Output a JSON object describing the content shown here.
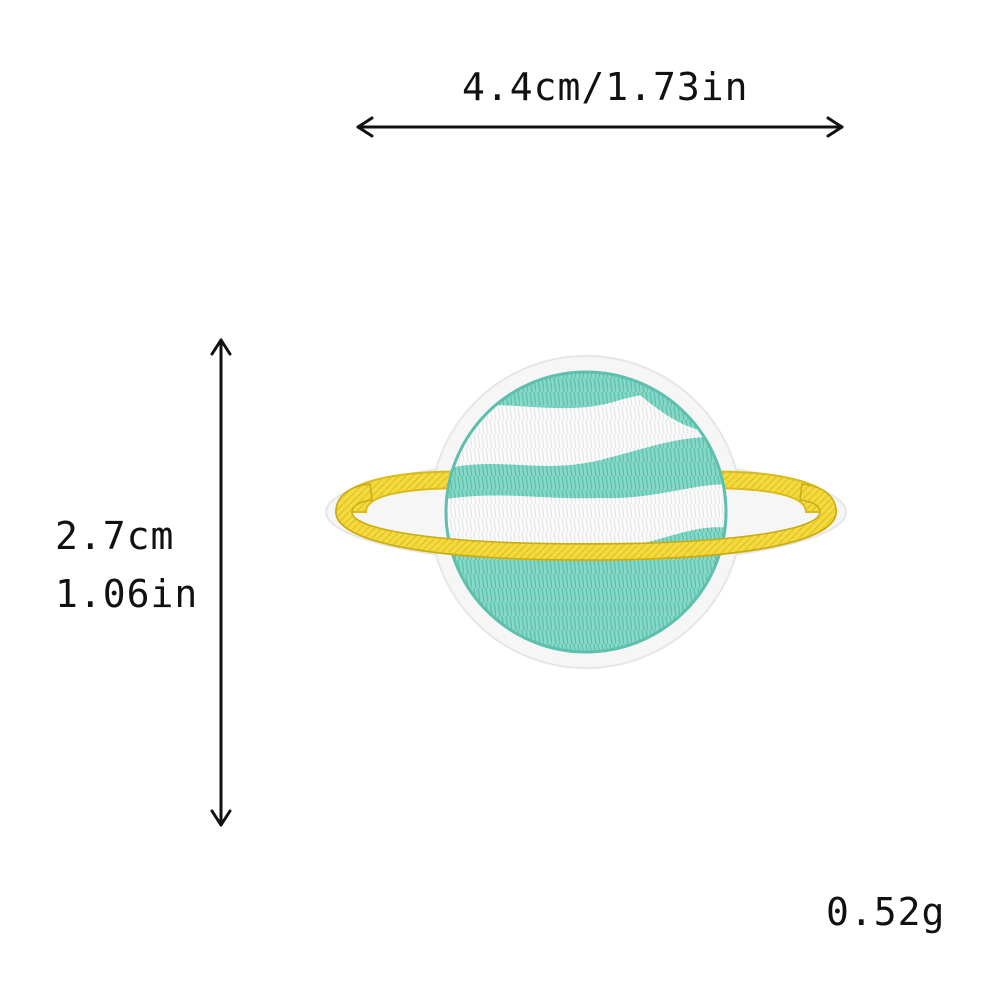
{
  "dimensions": {
    "width_text": "4.4cm/1.73in",
    "height_cm_text": "2.7cm",
    "height_in_text": "1.06in",
    "weight_text": "0.52g"
  },
  "colors": {
    "background": "#ffffff",
    "arrow": "#111111",
    "patch_backing": "#f7f7f7",
    "planet_teal": "#7fd3c3",
    "planet_white": "#fbfbfb",
    "ring_yellow": "#f2d63a",
    "stitch_edge": "#b9b08a"
  },
  "icons": {
    "width_arrow": "double-headed-horizontal-arrow",
    "height_arrow": "double-headed-vertical-arrow",
    "patch": "planet-embroidered-patch"
  }
}
